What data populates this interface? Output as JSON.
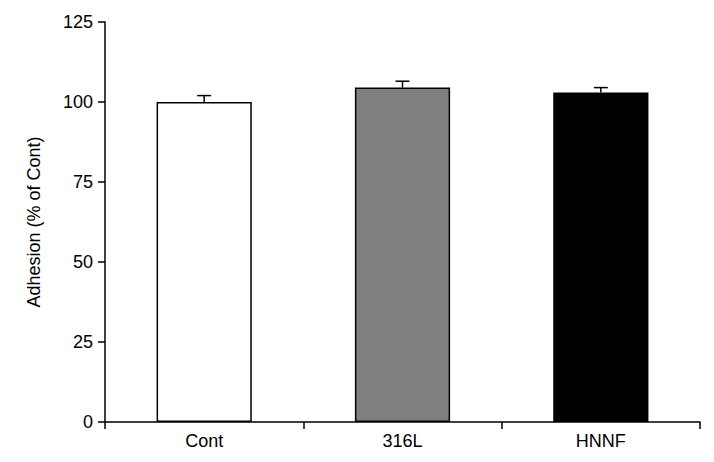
{
  "chart_data": {
    "type": "bar",
    "y_label": "Adhesion (% of Cont)",
    "categories": [
      "Cont",
      "316L",
      "HNNF"
    ],
    "values": [
      100,
      104.5,
      103
    ],
    "errors": [
      2,
      2,
      1.5
    ],
    "colors": [
      "#ffffff",
      "#808080",
      "#000000"
    ],
    "ylim": [
      0,
      125
    ],
    "yticks": [
      0,
      25,
      50,
      75,
      100,
      125
    ],
    "grid": false
  }
}
